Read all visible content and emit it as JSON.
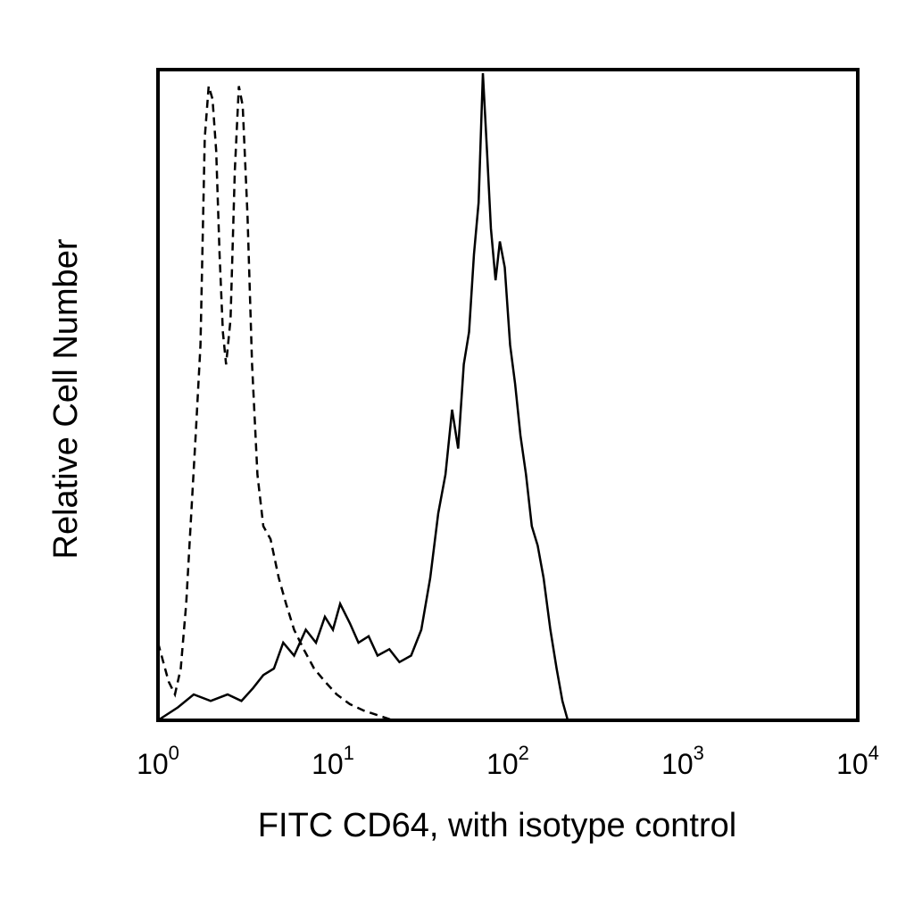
{
  "chart_data": {
    "type": "histogram",
    "title": "",
    "xlabel": "FITC CD64, with isotype control",
    "ylabel": "Relative Cell Number",
    "x_scale": "log",
    "xlim": [
      1,
      10000
    ],
    "ylim": [
      0,
      100
    ],
    "grid": false,
    "legend": "none",
    "x_ticks": [
      {
        "base": "10",
        "exp": "0",
        "value": 1
      },
      {
        "base": "10",
        "exp": "1",
        "value": 10
      },
      {
        "base": "10",
        "exp": "2",
        "value": 100
      },
      {
        "base": "10",
        "exp": "3",
        "value": 1000
      },
      {
        "base": "10",
        "exp": "4",
        "value": 10000
      }
    ],
    "series": [
      {
        "style": "dashed",
        "color": "#000000",
        "points": [
          [
            1.0,
            12
          ],
          [
            1.15,
            6
          ],
          [
            1.25,
            4
          ],
          [
            1.35,
            8
          ],
          [
            1.45,
            18
          ],
          [
            1.55,
            32
          ],
          [
            1.65,
            45
          ],
          [
            1.75,
            58
          ],
          [
            1.85,
            90
          ],
          [
            1.95,
            98
          ],
          [
            2.05,
            96
          ],
          [
            2.15,
            88
          ],
          [
            2.25,
            72
          ],
          [
            2.35,
            60
          ],
          [
            2.45,
            55
          ],
          [
            2.6,
            62
          ],
          [
            2.75,
            85
          ],
          [
            2.9,
            98
          ],
          [
            3.05,
            95
          ],
          [
            3.25,
            78
          ],
          [
            3.45,
            55
          ],
          [
            3.7,
            38
          ],
          [
            4.0,
            30
          ],
          [
            4.4,
            28
          ],
          [
            4.9,
            22
          ],
          [
            5.4,
            18
          ],
          [
            6.0,
            14
          ],
          [
            6.8,
            11
          ],
          [
            7.8,
            8
          ],
          [
            9.0,
            6
          ],
          [
            10.5,
            4
          ],
          [
            12.5,
            2.5
          ],
          [
            15.0,
            1.5
          ],
          [
            18.0,
            0.8
          ],
          [
            22.0,
            0
          ]
        ]
      },
      {
        "style": "solid",
        "color": "#000000",
        "points": [
          [
            1.0,
            0
          ],
          [
            1.3,
            2
          ],
          [
            1.6,
            4
          ],
          [
            2.0,
            3
          ],
          [
            2.5,
            4
          ],
          [
            3.0,
            3
          ],
          [
            3.5,
            5
          ],
          [
            4.0,
            7
          ],
          [
            4.6,
            8
          ],
          [
            5.2,
            12
          ],
          [
            6.0,
            10
          ],
          [
            7.0,
            14
          ],
          [
            8.0,
            12
          ],
          [
            9.0,
            16
          ],
          [
            10.0,
            14
          ],
          [
            11.0,
            18
          ],
          [
            12.5,
            15
          ],
          [
            14.0,
            12
          ],
          [
            16.0,
            13
          ],
          [
            18.0,
            10
          ],
          [
            21.0,
            11
          ],
          [
            24.0,
            9
          ],
          [
            28.0,
            10
          ],
          [
            32.0,
            14
          ],
          [
            36.0,
            22
          ],
          [
            40.0,
            32
          ],
          [
            44.0,
            38
          ],
          [
            48.0,
            48
          ],
          [
            52.0,
            42
          ],
          [
            56.0,
            55
          ],
          [
            60.0,
            60
          ],
          [
            64.0,
            72
          ],
          [
            68.0,
            80
          ],
          [
            72.0,
            100
          ],
          [
            76.0,
            88
          ],
          [
            80.0,
            76
          ],
          [
            85.0,
            68
          ],
          [
            90.0,
            74
          ],
          [
            96.0,
            70
          ],
          [
            103.0,
            58
          ],
          [
            110.0,
            52
          ],
          [
            118.0,
            44
          ],
          [
            127.0,
            38
          ],
          [
            137.0,
            30
          ],
          [
            148.0,
            27
          ],
          [
            160.0,
            22
          ],
          [
            175.0,
            14
          ],
          [
            190.0,
            8
          ],
          [
            205.0,
            3
          ],
          [
            220.0,
            0
          ]
        ]
      }
    ]
  }
}
